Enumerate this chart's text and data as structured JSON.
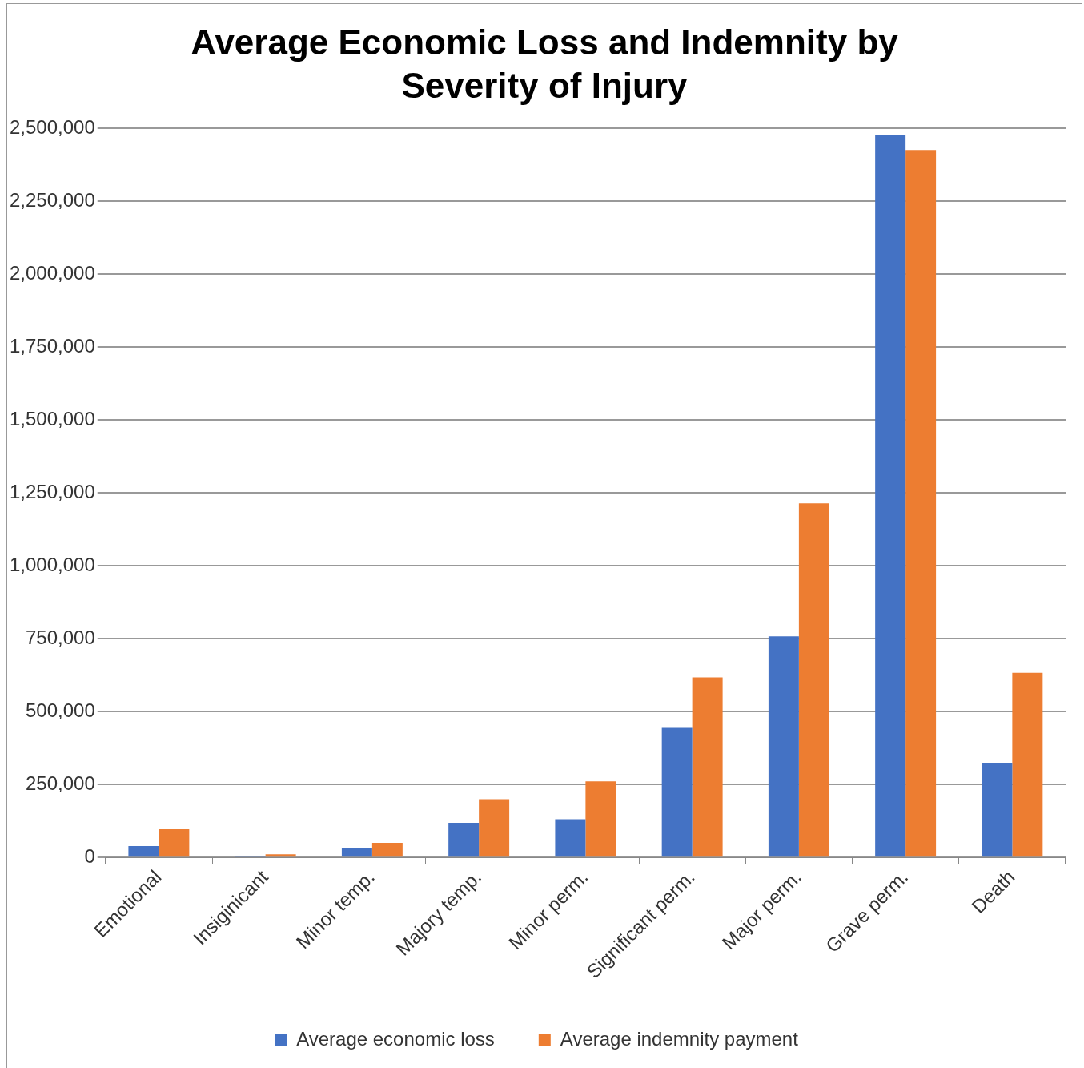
{
  "chart_data": {
    "type": "bar",
    "title": "Average Economic Loss and Indemnity by Severity of Injury",
    "categories": [
      "Emotional",
      "Insiginicant",
      "Minor temp.",
      "Majory temp.",
      "Minor perm.",
      "Significant perm.",
      "Major perm.",
      "Grave perm.",
      "Death"
    ],
    "series": [
      {
        "name": "Average economic loss",
        "color": "#4472c4",
        "values": [
          39000,
          5000,
          33000,
          119000,
          131000,
          444000,
          758000,
          2478000,
          325000
        ]
      },
      {
        "name": "Average indemnity payment",
        "color": "#ed7d31",
        "values": [
          97000,
          11000,
          50000,
          200000,
          261000,
          617000,
          1214000,
          2425000,
          633000
        ]
      }
    ],
    "ylim": [
      0,
      2500000
    ],
    "yticks": [
      0,
      {
        "value": 250000,
        "label": "250,000"
      },
      {
        "value": 500000,
        "label": "500,000"
      },
      {
        "value": 750000,
        "label": "750,000"
      },
      {
        "value": 1000000,
        "label": "1,000,000"
      },
      {
        "value": 1250000,
        "label": "1,250,000"
      },
      {
        "value": 1500000,
        "label": "1,500,000"
      },
      {
        "value": 1750000,
        "label": "1,750,000"
      },
      {
        "value": 2000000,
        "label": "2,000,000"
      },
      {
        "value": 2250000,
        "label": "2,250,000"
      },
      {
        "value": 2500000,
        "label": "2,500,000"
      }
    ],
    "grid": "y",
    "legend": "bottom"
  }
}
